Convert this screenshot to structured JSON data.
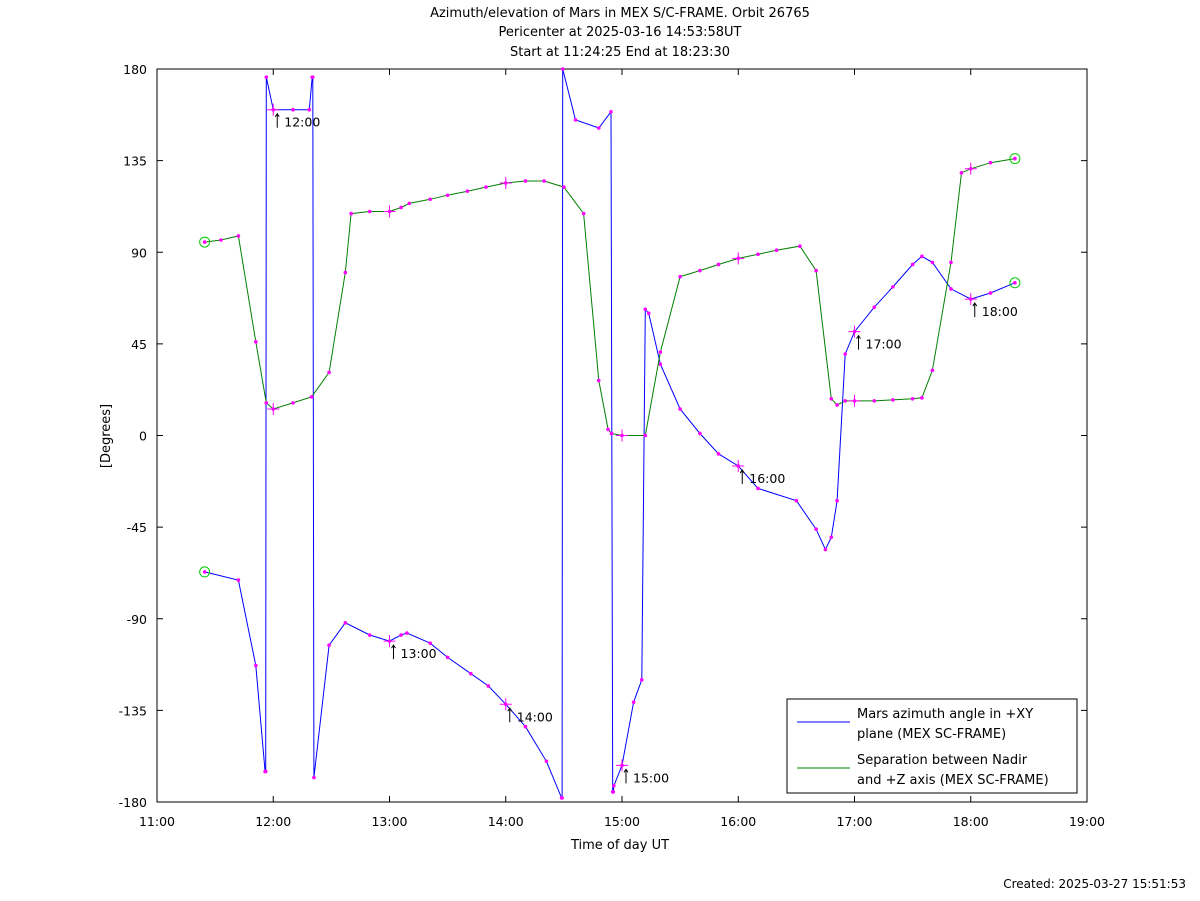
{
  "chart_data": {
    "type": "line",
    "title": [
      "Azimuth/elevation of Mars in MEX S/C-FRAME.  Orbit 26765",
      "Pericenter at 2025-03-16 14:53:58UT",
      "Start at 11:24:25 End at 18:23:30"
    ],
    "xlabel": "Time of day UT",
    "ylabel": "[Degrees]",
    "xlim": [
      11.0,
      19.0
    ],
    "ylim": [
      -180,
      180
    ],
    "x_ticks": [
      11,
      12,
      13,
      14,
      15,
      16,
      17,
      18,
      19
    ],
    "x_tick_labels": [
      "11:00",
      "12:00",
      "13:00",
      "14:00",
      "15:00",
      "16:00",
      "17:00",
      "18:00",
      "19:00"
    ],
    "y_ticks": [
      180,
      135,
      90,
      45,
      0,
      -45,
      -90,
      -135,
      -180
    ],
    "y_tick_labels": [
      "180",
      "135",
      "90",
      "45",
      "0",
      "-45",
      "-90",
      "-135",
      "-180"
    ],
    "grid": false,
    "legend_position": "bottom-right",
    "series": [
      {
        "name": "Mars azimuth angle in +XY plane (MEX SC-FRAME)",
        "legend_lines": [
          "Mars azimuth angle in +XY",
          "plane (MEX SC-FRAME)"
        ],
        "color": "#0000ff",
        "x": [
          11.41,
          11.7,
          11.85,
          11.93,
          11.935,
          11.94,
          12.0,
          12.17,
          12.31,
          12.335,
          12.34,
          12.35,
          12.48,
          12.62,
          12.83,
          13.0,
          13.1,
          13.15,
          13.35,
          13.5,
          13.7,
          13.85,
          14.0,
          14.17,
          14.35,
          14.48,
          14.485,
          14.49,
          14.6,
          14.8,
          14.905,
          14.92,
          14.925,
          14.93,
          15.0,
          15.1,
          15.17,
          15.2,
          15.23,
          15.33,
          15.5,
          15.67,
          15.83,
          16.0,
          16.17,
          16.5,
          16.67,
          16.75,
          16.8,
          16.85,
          16.92,
          17.0,
          17.17,
          17.33,
          17.5,
          17.58,
          17.67,
          17.83,
          18.0,
          18.17,
          18.38
        ],
        "y": [
          -67,
          -71,
          -113,
          -165,
          -165,
          176,
          160,
          160,
          160,
          176,
          176,
          -168,
          -103,
          -92,
          -98,
          -101,
          -98,
          -97,
          -102,
          -109,
          -117,
          -123,
          -132,
          -143,
          -160,
          -178,
          -178,
          180,
          155,
          151,
          159,
          -175,
          -175,
          -172,
          -162,
          -131,
          -120,
          62,
          60,
          35,
          13,
          1,
          -9,
          -15,
          -26,
          -32,
          -46,
          -56,
          -50,
          -32,
          40,
          51,
          63,
          73,
          84,
          88,
          85,
          72,
          67,
          70,
          75
        ]
      },
      {
        "name": "Separation between Nadir and +Z axis (MEX SC-FRAME)",
        "legend_lines": [
          "Separation between Nadir",
          "and +Z axis (MEX SC-FRAME)"
        ],
        "color": "#008000",
        "x": [
          11.41,
          11.55,
          11.7,
          11.85,
          11.94,
          12.0,
          12.17,
          12.33,
          12.48,
          12.62,
          12.67,
          12.83,
          13.0,
          13.1,
          13.17,
          13.35,
          13.5,
          13.67,
          13.83,
          14.0,
          14.17,
          14.33,
          14.5,
          14.67,
          14.8,
          14.88,
          14.91,
          15.0,
          15.2,
          15.33,
          15.5,
          15.67,
          15.83,
          16.0,
          16.17,
          16.33,
          16.53,
          16.67,
          16.8,
          16.85,
          16.92,
          17.0,
          17.17,
          17.33,
          17.5,
          17.58,
          17.67,
          17.83,
          17.92,
          18.0,
          18.17,
          18.38
        ],
        "y": [
          95,
          96,
          98,
          46,
          16,
          13,
          16,
          19,
          31,
          80,
          109,
          110,
          110,
          112,
          114,
          116,
          118,
          120,
          122,
          124,
          125,
          125,
          122,
          109,
          27,
          3,
          1,
          0,
          0,
          41,
          78,
          81,
          84,
          87,
          89,
          91,
          93,
          81,
          18,
          15,
          17,
          17,
          17,
          17.5,
          18,
          18.5,
          32,
          85,
          129,
          131,
          134,
          136
        ]
      }
    ],
    "time_marks": [
      "12:00",
      "13:00",
      "14:00",
      "15:00",
      "16:00",
      "17:00",
      "18:00"
    ],
    "footer": "Created: 2025-03-27 15:51:53"
  }
}
